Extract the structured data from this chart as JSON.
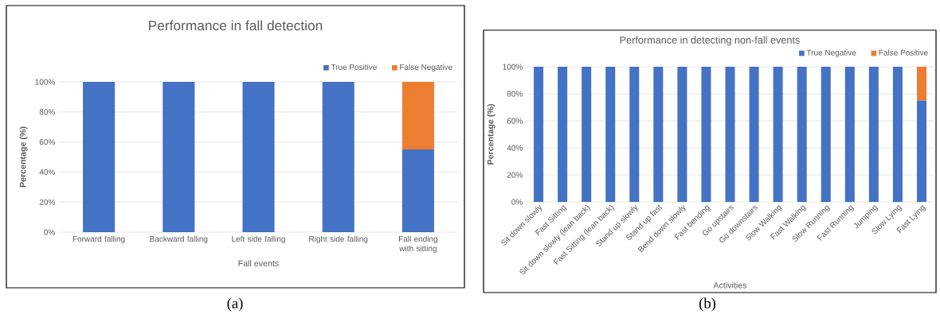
{
  "chart_data": [
    {
      "type": "bar",
      "title": "Performance in fall detection",
      "xlabel": "Fall events",
      "ylabel": "Percentage (%)",
      "categories": [
        "Forward falling",
        "Backward falling",
        "Left side falling",
        "Right side falling",
        "Fall ending with sitting"
      ],
      "series": [
        {
          "name": "True Positive",
          "color": "#4472c4",
          "values": [
            100,
            100,
            100,
            100,
            55
          ]
        },
        {
          "name": "False Negative",
          "color": "#ed7d31",
          "values": [
            0,
            0,
            0,
            0,
            45
          ]
        }
      ],
      "stacked": true,
      "ylim": [
        0,
        100
      ],
      "yticks": [
        {
          "value": 0,
          "label": "0%"
        },
        {
          "value": 20,
          "label": "20%"
        },
        {
          "value": 40,
          "label": "40%"
        },
        {
          "value": 60,
          "label": "60%"
        },
        {
          "value": 80,
          "label": "80%"
        },
        {
          "value": 100,
          "label": "100%"
        }
      ],
      "grid": "y",
      "legend": "top right",
      "annotations": [
        "(a)"
      ]
    },
    {
      "type": "bar",
      "title": "Performance in detecting non-fall events",
      "xlabel": "Activities",
      "ylabel": "Percentage (%)",
      "categories": [
        "Sit down slowly",
        "Fast Sitting",
        "Sit down slowly (lean back)",
        "Fast Sitting (lean back)",
        "Stand up slowly",
        "Stand up fast",
        "Bend down slowly",
        "Fast bending",
        "Go upstairs",
        "Go downstairs",
        "Slow Walking",
        "Fast Walking",
        "Slow Running",
        "Fast Running",
        "Jumping",
        "Slow Lying",
        "Fast Lying"
      ],
      "series": [
        {
          "name": "True Negative",
          "color": "#4472c4",
          "values": [
            100,
            100,
            100,
            100,
            100,
            100,
            100,
            100,
            100,
            100,
            100,
            100,
            100,
            100,
            100,
            100,
            75
          ]
        },
        {
          "name": "False Positive",
          "color": "#ed7d31",
          "values": [
            0,
            0,
            0,
            0,
            0,
            0,
            0,
            0,
            0,
            0,
            0,
            0,
            0,
            0,
            0,
            0,
            25
          ]
        }
      ],
      "stacked": true,
      "ylim": [
        0,
        100
      ],
      "yticks": [
        {
          "value": 0,
          "label": "0%"
        },
        {
          "value": 20,
          "label": "20%"
        },
        {
          "value": 40,
          "label": "40%"
        },
        {
          "value": 60,
          "label": "60%"
        },
        {
          "value": 80,
          "label": "80%"
        },
        {
          "value": 100,
          "label": "100%"
        }
      ],
      "grid": "y",
      "legend": "top right",
      "annotations": [
        "(b)"
      ]
    }
  ]
}
